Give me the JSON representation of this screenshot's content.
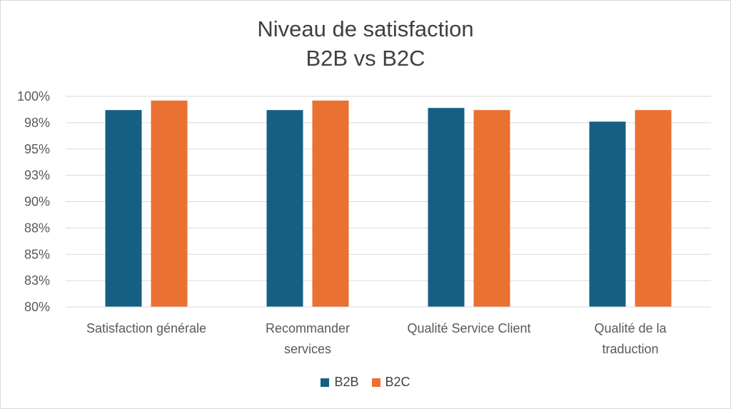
{
  "chart_data": {
    "type": "bar",
    "title": [
      "Niveau de satisfaction",
      "B2B vs B2C"
    ],
    "categories": [
      [
        "Satisfaction générale"
      ],
      [
        "Recommander",
        "services"
      ],
      [
        "Qualité Service Client"
      ],
      [
        "Qualité de la",
        "traduction"
      ]
    ],
    "series": [
      {
        "name": "B2B",
        "color": "#156082",
        "values": [
          0.987,
          0.987,
          0.989,
          0.976
        ]
      },
      {
        "name": "B2C",
        "color": "#e97132",
        "values": [
          0.996,
          0.996,
          0.987,
          0.987
        ]
      }
    ],
    "ylim": [
      0.8,
      1.0
    ],
    "yticks": [
      "80%",
      "83%",
      "85%",
      "88%",
      "90%",
      "93%",
      "95%",
      "98%",
      "100%"
    ],
    "grid": true,
    "legend": "bottom"
  }
}
